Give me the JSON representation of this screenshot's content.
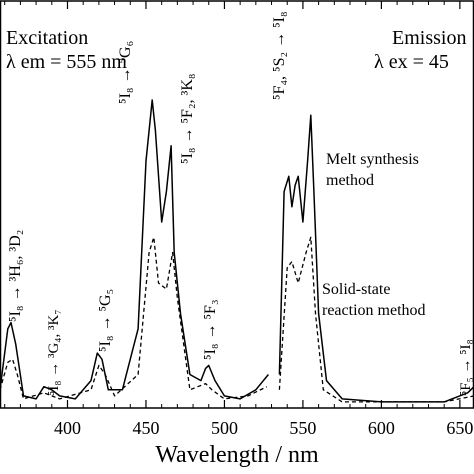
{
  "chart_data": {
    "type": "line",
    "xlabel": "Wavelength / nm",
    "xlim": [
      357,
      659
    ],
    "xticks": [
      400,
      450,
      500,
      550,
      600,
      650
    ],
    "ylim": [
      0,
      1
    ],
    "annotations": [
      "Excitation",
      "λ em = 555 nm",
      "Emission",
      "λ ex = 45",
      "⁵I₈ → ³H₆, ³D₂",
      "⁵I₈ → ³G₄, ³K₇",
      "⁵I₈ → ⁵G₅",
      "⁵I₈ → ⁵G₆",
      "⁵I₈ → ⁵F₂, ³K₈",
      "⁵I₈ → ⁵F₃",
      "⁵F₄, ⁵S₂ → ⁵I₈",
      "⁵F₅ → ⁵I₈",
      "Melt synthesis",
      "method",
      "Solid-state",
      "reaction method"
    ],
    "series": [
      {
        "name": "Melt synthesis method",
        "color": "#000000",
        "dash": false,
        "x": [
          357,
          362,
          364,
          367,
          372,
          380,
          385,
          390,
          395,
          405,
          415,
          419,
          422,
          426,
          435,
          445,
          450,
          454,
          456,
          460,
          463,
          466,
          468,
          472,
          478,
          485,
          488,
          490,
          494,
          500,
          510,
          520,
          528,
          530,
          535,
          538,
          541,
          543,
          545,
          547,
          550,
          553,
          555,
          557,
          560,
          565,
          575,
          600,
          640,
          655,
          659
        ],
        "values": [
          0.05,
          0.25,
          0.27,
          0.2,
          0.03,
          0.02,
          0.06,
          0.05,
          0.03,
          0.02,
          0.08,
          0.17,
          0.15,
          0.05,
          0.05,
          0.25,
          0.8,
          1.0,
          0.9,
          0.6,
          0.7,
          0.85,
          0.5,
          0.3,
          0.1,
          0.08,
          0.12,
          0.13,
          0.08,
          0.03,
          0.02,
          0.05,
          0.1,
          null,
          0.1,
          0.7,
          0.75,
          0.65,
          0.72,
          0.75,
          0.6,
          0.8,
          0.95,
          0.7,
          0.3,
          0.08,
          0.02,
          0.01,
          0.01,
          0.04,
          0.06
        ]
      },
      {
        "name": "Solid-state reaction method",
        "color": "#000000",
        "dash": true,
        "x": [
          357,
          362,
          365,
          368,
          372,
          385,
          395,
          415,
          420,
          424,
          430,
          445,
          452,
          455,
          458,
          463,
          467,
          470,
          478,
          488,
          492,
          500,
          515,
          527,
          530,
          535,
          540,
          543,
          547,
          552,
          555,
          558,
          563,
          575,
          640,
          659
        ],
        "values": [
          0.05,
          0.14,
          0.15,
          0.1,
          0.02,
          0.04,
          0.02,
          0.05,
          0.13,
          0.1,
          0.03,
          0.1,
          0.5,
          0.55,
          0.4,
          0.38,
          0.5,
          0.35,
          0.05,
          0.07,
          0.05,
          0.02,
          0.03,
          0.06,
          null,
          0.05,
          0.45,
          0.47,
          0.4,
          0.5,
          0.55,
          0.3,
          0.05,
          0.01,
          0.01,
          0.03
        ]
      }
    ]
  }
}
